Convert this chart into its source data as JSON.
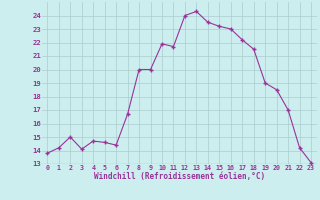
{
  "x": [
    0,
    1,
    2,
    3,
    4,
    5,
    6,
    7,
    8,
    9,
    10,
    11,
    12,
    13,
    14,
    15,
    16,
    17,
    18,
    19,
    20,
    21,
    22,
    23
  ],
  "y": [
    13.8,
    14.2,
    15.0,
    14.1,
    14.7,
    14.6,
    14.4,
    16.7,
    20.0,
    20.0,
    21.9,
    21.7,
    24.0,
    24.3,
    23.5,
    23.2,
    23.0,
    22.2,
    21.5,
    19.0,
    18.5,
    17.0,
    14.2,
    13.1
  ],
  "line_color": "#993399",
  "marker_color": "#993399",
  "bg_color": "#cceeee",
  "grid_color": "#aacccc",
  "xlabel": "Windchill (Refroidissement éolien,°C)",
  "xlabel_color": "#993399",
  "tick_color": "#993399",
  "ylim": [
    13,
    25
  ],
  "xlim_min": -0.5,
  "xlim_max": 23.5,
  "yticks": [
    13,
    14,
    15,
    16,
    17,
    18,
    19,
    20,
    21,
    22,
    23,
    24
  ],
  "xticks": [
    0,
    1,
    2,
    3,
    4,
    5,
    6,
    7,
    8,
    9,
    10,
    11,
    12,
    13,
    14,
    15,
    16,
    17,
    18,
    19,
    20,
    21,
    22,
    23
  ]
}
